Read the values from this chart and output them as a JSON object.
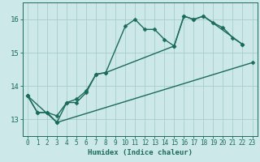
{
  "title": "",
  "xlabel": "Humidex (Indice chaleur)",
  "xlim": [
    -0.5,
    23.5
  ],
  "ylim": [
    12.5,
    16.5
  ],
  "yticks": [
    13,
    14,
    15,
    16
  ],
  "xticks": [
    0,
    1,
    2,
    3,
    4,
    5,
    6,
    7,
    8,
    9,
    10,
    11,
    12,
    13,
    14,
    15,
    16,
    17,
    18,
    19,
    20,
    21,
    22,
    23
  ],
  "bg_color": "#cce8e8",
  "grid_color": "#a8cccc",
  "line_color": "#1a6b5a",
  "curve1_x": [
    0,
    1,
    2,
    3,
    4,
    5,
    6,
    7,
    8,
    10,
    11,
    12,
    13,
    14,
    15,
    16,
    17,
    18,
    19,
    20,
    21,
    22
  ],
  "curve1_y": [
    13.7,
    13.2,
    13.2,
    12.9,
    13.5,
    13.5,
    13.8,
    14.35,
    14.4,
    15.8,
    16.0,
    15.7,
    15.7,
    15.4,
    15.2,
    16.1,
    16.0,
    16.1,
    15.9,
    15.75,
    15.45,
    15.25
  ],
  "curve2_x": [
    0,
    1,
    2,
    3,
    4,
    5,
    6,
    7,
    8,
    15,
    16,
    17,
    18,
    22
  ],
  "curve2_y": [
    13.7,
    13.2,
    13.2,
    13.1,
    13.5,
    13.6,
    13.85,
    14.35,
    14.4,
    15.2,
    16.1,
    16.0,
    16.1,
    15.25
  ],
  "curve3_x": [
    0,
    3,
    23
  ],
  "curve3_y": [
    13.7,
    12.9,
    14.7
  ],
  "marker": "D",
  "marker_size": 2.5,
  "line_width": 1.0,
  "xlabel_fontsize": 6.5,
  "tick_fontsize": 5.5,
  "ytick_fontsize": 6.5
}
